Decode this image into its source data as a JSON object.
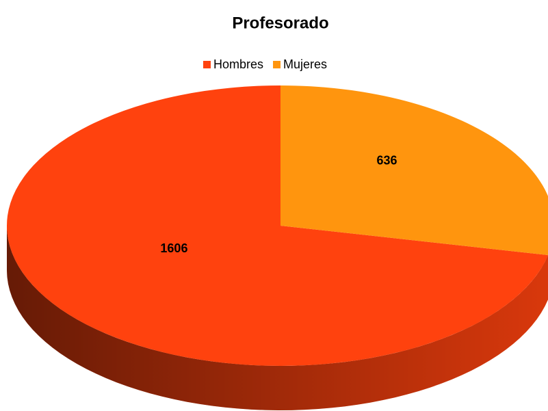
{
  "chart_data": {
    "type": "pie",
    "title": "Profesorado",
    "categories": [
      "Hombres",
      "Mujeres"
    ],
    "values": [
      1606,
      636
    ],
    "colors": [
      "#ff420e",
      "#ff950e"
    ],
    "legend": "top"
  }
}
